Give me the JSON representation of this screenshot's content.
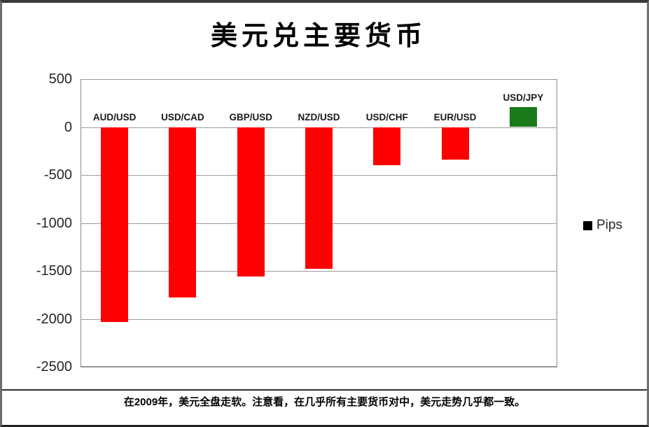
{
  "chart_data": {
    "type": "bar",
    "title": "美元兑主要货币",
    "categories": [
      "AUD/USD",
      "USD/CAD",
      "GBP/USD",
      "NZD/USD",
      "USD/CHF",
      "EUR/USD",
      "USD/JPY"
    ],
    "values": [
      -2030,
      -1780,
      -1560,
      -1480,
      -400,
      -340,
      210
    ],
    "series_name": "Pips",
    "ylim": [
      -2500,
      500
    ],
    "yticks": [
      500,
      0,
      -500,
      -1000,
      -1500,
      -2000,
      -2500
    ],
    "grid": true,
    "legend_position": "right",
    "negative_color": "#FF0000",
    "positive_color": "#1A7A1A",
    "legend_marker_color": "#000000"
  },
  "legend": {
    "label": "Pips"
  },
  "caption": "在2009年，美元全盘走软。注意看，在几乎所有主要货币对中，美元走势几乎都一致。"
}
